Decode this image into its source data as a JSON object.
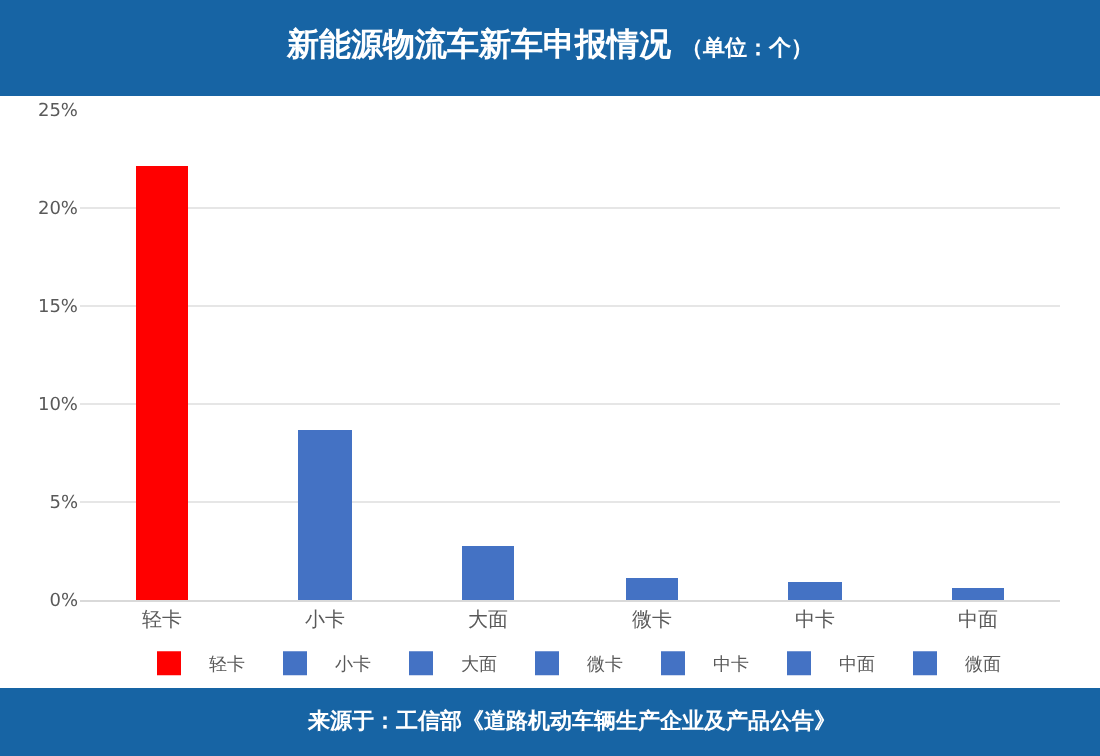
{
  "chart_data": {
    "type": "bar",
    "title": "新能源物流车新车申报情况",
    "subtitle": "（单位：个）",
    "categories": [
      "轻卡",
      "小卡",
      "大面",
      "微卡",
      "中卡",
      "中面"
    ],
    "series": [
      {
        "name": "轻卡",
        "color": "#ff0000",
        "values": [
          22.1,
          null,
          null,
          null,
          null,
          null
        ]
      },
      {
        "name": "小卡",
        "color": "#4472c4",
        "values": [
          null,
          8.7,
          null,
          null,
          null,
          null
        ]
      },
      {
        "name": "大面",
        "color": "#4472c4",
        "values": [
          null,
          null,
          2.8,
          null,
          null,
          null
        ]
      },
      {
        "name": "微卡",
        "color": "#4472c4",
        "values": [
          null,
          null,
          null,
          1.1,
          null,
          null
        ]
      },
      {
        "name": "中卡",
        "color": "#4472c4",
        "values": [
          null,
          null,
          null,
          null,
          0.9,
          null
        ]
      },
      {
        "name": "中面",
        "color": "#4472c4",
        "values": [
          null,
          null,
          null,
          null,
          null,
          0.6
        ]
      },
      {
        "name": "微面",
        "color": "#4472c4",
        "values": [
          null,
          null,
          null,
          null,
          null,
          null
        ]
      }
    ],
    "ylim": [
      0,
      25
    ],
    "yticks": [
      {
        "value": 0,
        "label": "0%"
      },
      {
        "value": 5,
        "label": "5%"
      },
      {
        "value": 10,
        "label": "10%"
      },
      {
        "value": 15,
        "label": "15%"
      },
      {
        "value": 20,
        "label": "20%"
      },
      {
        "value": 25,
        "label": "25%"
      }
    ],
    "grid": "y",
    "legend": "bottom",
    "annotations": [
      "来源于：工信部《道路机动车辆生产企业及产品公告》"
    ]
  }
}
